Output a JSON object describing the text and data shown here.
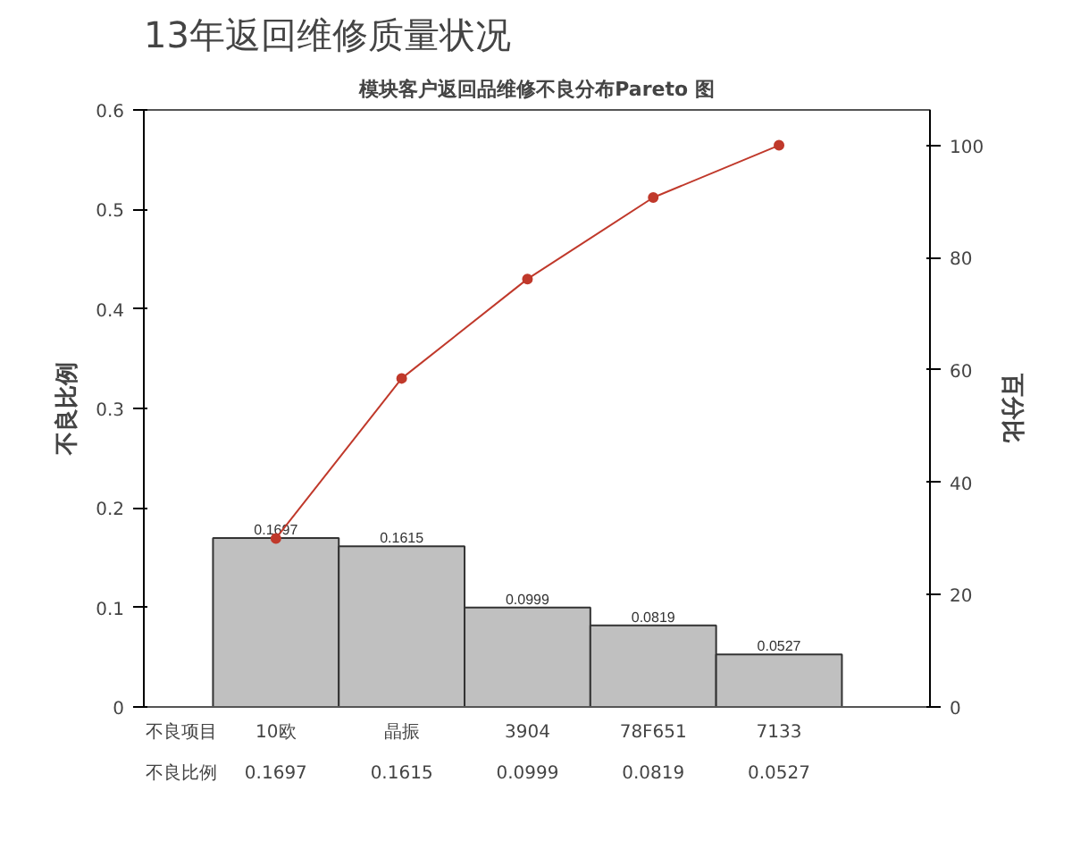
{
  "chart_data": {
    "type": "bar",
    "title": "13年返回维修质量状况",
    "subtitle": "模块客户返回品维修不良分布Pareto 图",
    "ylabel": "不良比例",
    "y2label": "百分比",
    "categories": [
      "10欧",
      "晶振",
      "3904",
      "78F651",
      "7133"
    ],
    "series": [
      {
        "color": "#c0c0c0",
        "values": [
          0.1697,
          0.1615,
          0.0999,
          0.0819,
          0.0527
        ],
        "value_labels": [
          "0.1697",
          "0.1615",
          "0.0999",
          "0.0819",
          "0.0527"
        ]
      },
      {
        "type": "line",
        "axis": "y2",
        "color": "#c0392b",
        "marker": "circle",
        "values": [
          30.0,
          58.5,
          76.2,
          90.7,
          100
        ]
      }
    ],
    "annotations": [
      "不良项目",
      "不良比例"
    ],
    "ylim": [
      0,
      0.6
    ],
    "yticks": [
      0,
      0.1,
      0.2,
      0.3,
      0.4,
      0.5,
      0.6
    ],
    "y2lim": [
      0,
      106.3
    ],
    "y2ticks": [
      0,
      20,
      40,
      60,
      80,
      100
    ],
    "grid": false
  }
}
